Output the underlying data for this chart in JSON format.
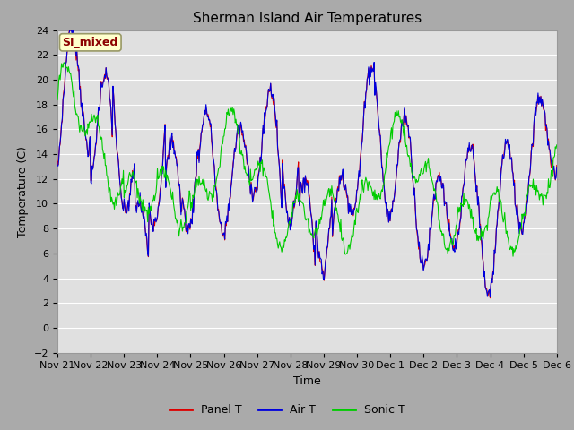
{
  "title": "Sherman Island Air Temperatures",
  "ylabel": "Temperature (C)",
  "xlabel": "Time",
  "annotation": "SI_mixed",
  "ylim": [
    -2,
    24
  ],
  "yticks": [
    -2,
    0,
    2,
    4,
    6,
    8,
    10,
    12,
    14,
    16,
    18,
    20,
    22,
    24
  ],
  "xtick_labels": [
    "Nov 21",
    "Nov 22",
    "Nov 23",
    "Nov 24",
    "Nov 25",
    "Nov 26",
    "Nov 27",
    "Nov 28",
    "Nov 29",
    "Nov 30",
    "Dec 1",
    "Dec 2",
    "Dec 3",
    "Dec 4",
    "Dec 5",
    "Dec 6"
  ],
  "legend": [
    "Panel T",
    "Air T",
    "Sonic T"
  ],
  "colors": {
    "panel": "#dd0000",
    "air": "#0000dd",
    "sonic": "#00cc00"
  },
  "fig_bg": "#aaaaaa",
  "plot_bg": "#e0e0e0",
  "title_fontsize": 11,
  "label_fontsize": 9,
  "tick_fontsize": 8,
  "n_days": 15,
  "n_per_day": 48
}
